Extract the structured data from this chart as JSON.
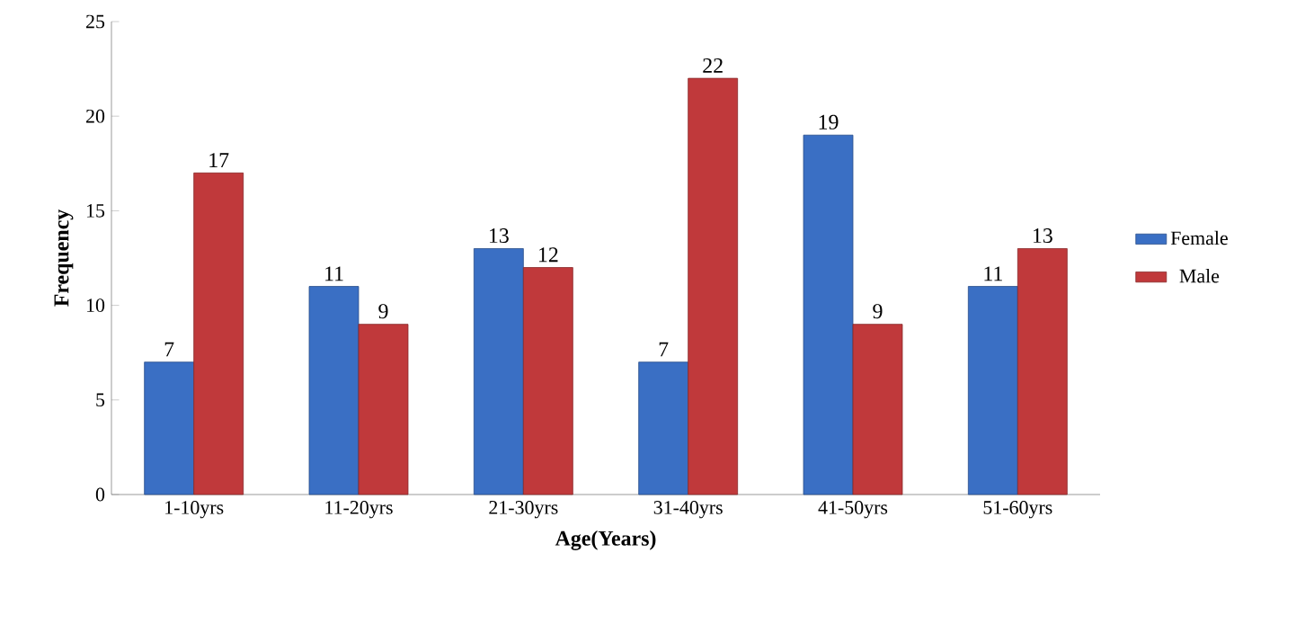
{
  "chart_data": {
    "type": "bar",
    "xlabel": "Age(Years)",
    "ylabel": "Frequency",
    "categories": [
      "1-10yrs",
      "11-20yrs",
      "21-30yrs",
      "31-40yrs",
      "41-50yrs",
      "51-60yrs"
    ],
    "series": [
      {
        "name": "Female",
        "color": "#3a6fc4",
        "values": [
          7,
          11,
          13,
          7,
          19,
          11
        ]
      },
      {
        "name": "Male",
        "color": "#c0393b",
        "values": [
          17,
          9,
          12,
          22,
          9,
          13
        ]
      }
    ],
    "ylim": [
      0,
      25
    ],
    "yticks": [
      0,
      5,
      10,
      15,
      20,
      25
    ],
    "legend": "right",
    "data_labels": true
  }
}
